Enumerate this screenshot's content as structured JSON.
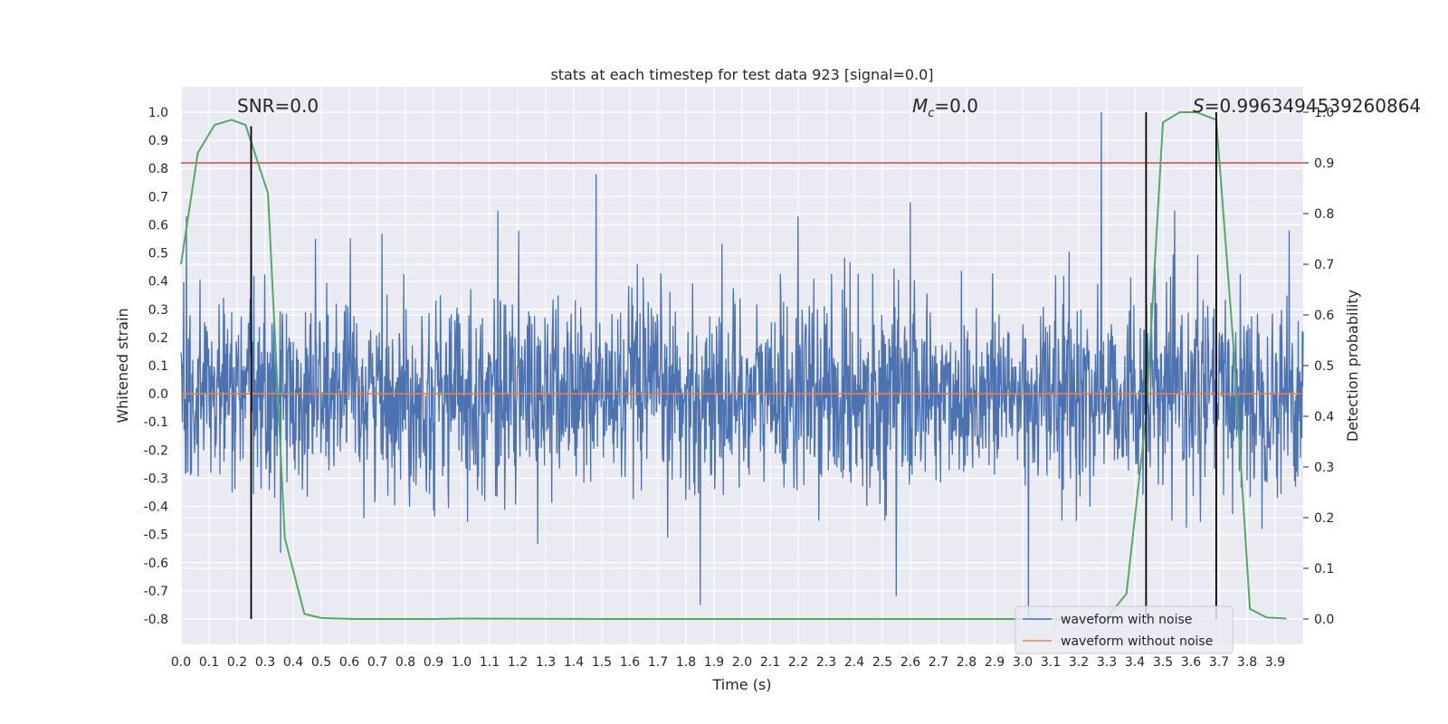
{
  "chart_data": {
    "type": "line",
    "title": "stats at each timestep for test data 923 [signal=0.0]",
    "xlabel": "Time (s)",
    "ylabel": "Whitened strain",
    "ylabel_right": "Detection probability",
    "xlim": [
      0.0,
      4.0
    ],
    "ylim": [
      -0.89,
      1.09
    ],
    "ylim_right": [
      -0.05,
      1.05
    ],
    "x_ticks": [
      "0.0",
      "0.1",
      "0.2",
      "0.3",
      "0.4",
      "0.5",
      "0.6",
      "0.7",
      "0.8",
      "0.9",
      "1.0",
      "1.1",
      "1.2",
      "1.3",
      "1.4",
      "1.5",
      "1.6",
      "1.7",
      "1.8",
      "1.9",
      "2.0",
      "2.1",
      "2.2",
      "2.3",
      "2.4",
      "2.5",
      "2.6",
      "2.7",
      "2.8",
      "2.9",
      "3.0",
      "3.1",
      "3.2",
      "3.3",
      "3.4",
      "3.5",
      "3.6",
      "3.7",
      "3.8",
      "3.9"
    ],
    "y_ticks": [
      "1.0",
      "0.9",
      "0.8",
      "0.7",
      "0.6",
      "0.5",
      "0.4",
      "0.3",
      "0.2",
      "0.1",
      "0.0",
      "-0.1",
      "-0.2",
      "-0.3",
      "-0.4",
      "-0.5",
      "-0.6",
      "-0.7",
      "-0.8"
    ],
    "y_ticks_right": [
      "1.0",
      "0.9",
      "0.8",
      "0.7",
      "0.6",
      "0.5",
      "0.4",
      "0.3",
      "0.2",
      "0.1",
      "0.0"
    ],
    "annotations": [
      {
        "text": "SNR=0.0",
        "x": 0.2
      },
      {
        "text": "=0.0",
        "symbol": "M",
        "subscript": "c",
        "x": 2.6
      },
      {
        "text": "=0.9963494539260864",
        "symbol": "S",
        "x": 3.58
      }
    ],
    "threshold_right": 0.9,
    "vertical_lines": [
      {
        "x": 0.25,
        "y_top": 0.95,
        "y_bottom": -0.8
      },
      {
        "x": 3.44,
        "y_top": 1.0,
        "y_bottom": -0.8
      },
      {
        "x": 3.69,
        "y_top": 1.0,
        "y_bottom": -0.8
      }
    ],
    "series": [
      {
        "name": "waveform with noise",
        "color": "#4c72b0",
        "noise_std": 0.17,
        "peaks": [
          [
            0.02,
            0.63
          ],
          [
            0.25,
            0.6
          ],
          [
            0.48,
            0.55
          ],
          [
            1.13,
            0.65
          ],
          [
            1.48,
            0.78
          ],
          [
            1.85,
            -0.75
          ],
          [
            2.2,
            0.63
          ],
          [
            2.55,
            -0.72
          ],
          [
            2.6,
            0.68
          ],
          [
            3.02,
            -0.8
          ],
          [
            3.28,
            1.0
          ],
          [
            3.95,
            0.58
          ]
        ]
      },
      {
        "name": "waveform without noise",
        "color": "#dd8452",
        "y_constant": 0.0
      },
      {
        "name": "Detection probability",
        "color": "#55a868",
        "axis": "right",
        "x": [
          0.0,
          0.06,
          0.12,
          0.18,
          0.23,
          0.31,
          0.37,
          0.44,
          0.5,
          0.56,
          0.62,
          0.75,
          0.9,
          1.0,
          1.5,
          2.0,
          2.5,
          3.0,
          3.2,
          3.3,
          3.37,
          3.44,
          3.5,
          3.56,
          3.62,
          3.69,
          3.75,
          3.81,
          3.87,
          3.94
        ],
        "y": [
          0.7,
          0.92,
          0.975,
          0.985,
          0.975,
          0.84,
          0.16,
          0.01,
          0.002,
          0.001,
          0.0,
          0.0,
          0.0,
          0.001,
          0.0,
          0.0,
          0.0,
          0.0,
          0.0,
          0.002,
          0.05,
          0.4,
          0.98,
          1.0,
          1.0,
          0.985,
          0.55,
          0.02,
          0.003,
          0.001
        ]
      }
    ],
    "legend": {
      "position": "lower-right",
      "entries": [
        "waveform with noise",
        "waveform without noise"
      ]
    },
    "grid": true
  }
}
